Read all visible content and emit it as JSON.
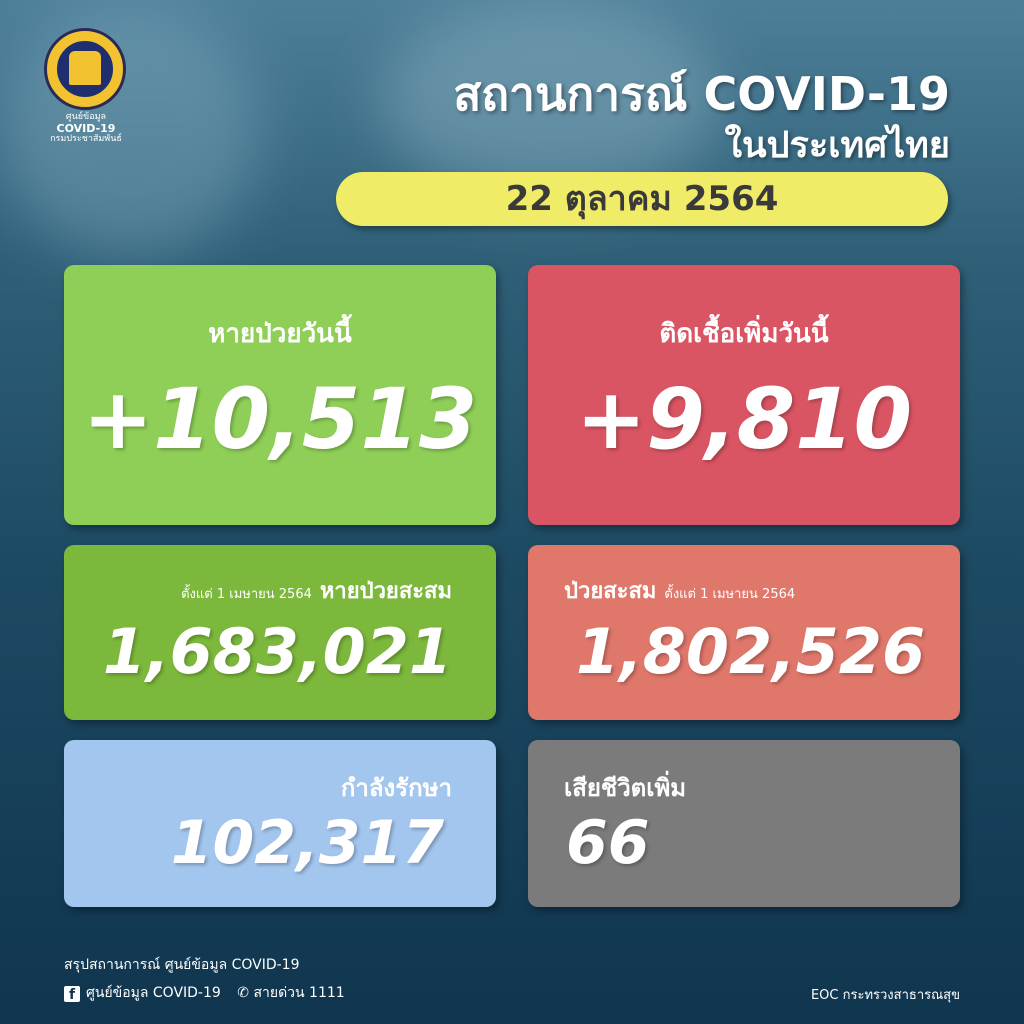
{
  "logo": {
    "line1": "ศูนย์ข้อมูล",
    "line2": "COVID-19",
    "line3": "กรมประชาสัมพันธ์"
  },
  "header": {
    "title": "สถานการณ์ COVID-19",
    "subtitle": "ในประเทศไทย",
    "date": "22 ตุลาคม 2564"
  },
  "cards": {
    "recovered_today": {
      "label": "หายป่วยวันนี้",
      "value": "+10,513",
      "color": "#8fcf58"
    },
    "new_cases": {
      "label": "ติดเชื้อเพิ่มวันนี้",
      "value": "+9,810",
      "color": "#d95563"
    },
    "recovered_total": {
      "since": "ตั้งแต่ 1 เมษายน 2564",
      "label": "หายป่วยสะสม",
      "value": "1,683,021",
      "color": "#7cb83c"
    },
    "cases_total": {
      "label": "ป่วยสะสม",
      "since": "ตั้งแต่ 1 เมษายน 2564",
      "value": "1,802,526",
      "color": "#e0776b"
    },
    "in_treatment": {
      "label": "กำลังรักษา",
      "value": "102,317",
      "color": "#a3c6ef"
    },
    "deaths": {
      "label": "เสียชีวิตเพิ่ม",
      "value": "66",
      "color": "#7b7b7b"
    }
  },
  "footer": {
    "summary": "สรุปสถานการณ์ ศูนย์ข้อมูล COVID-19",
    "facebook": "ศูนย์ข้อมูล COVID-19",
    "hotline": "สายด่วน 1111",
    "source": "EOC กระทรวงสาธารณสุข"
  }
}
